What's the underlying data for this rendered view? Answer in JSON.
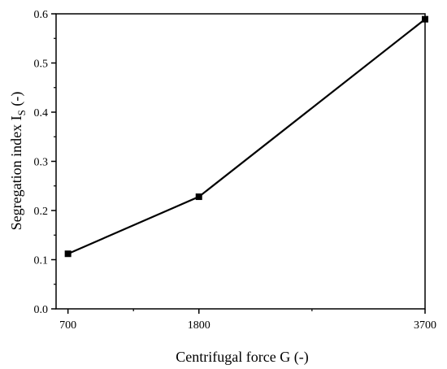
{
  "chart_data": {
    "type": "line",
    "xlabel": "Centrifugal force G (-)",
    "ylabel_main": "Segregation index I",
    "ylabel_sub": "S",
    "ylabel_suffix": " (-)",
    "x_ticks": [
      "700",
      "1800",
      "3700"
    ],
    "y_ticks": [
      "0.0",
      "0.1",
      "0.2",
      "0.3",
      "0.4",
      "0.5",
      "0.6"
    ],
    "xlim": [
      600,
      3700
    ],
    "ylim": [
      0.0,
      0.6
    ],
    "series": [
      {
        "x": [
          700,
          1800,
          3700
        ],
        "y": [
          0.112,
          0.228,
          0.589
        ]
      }
    ],
    "marker": "square",
    "grid": false,
    "line_color": "#000000"
  }
}
